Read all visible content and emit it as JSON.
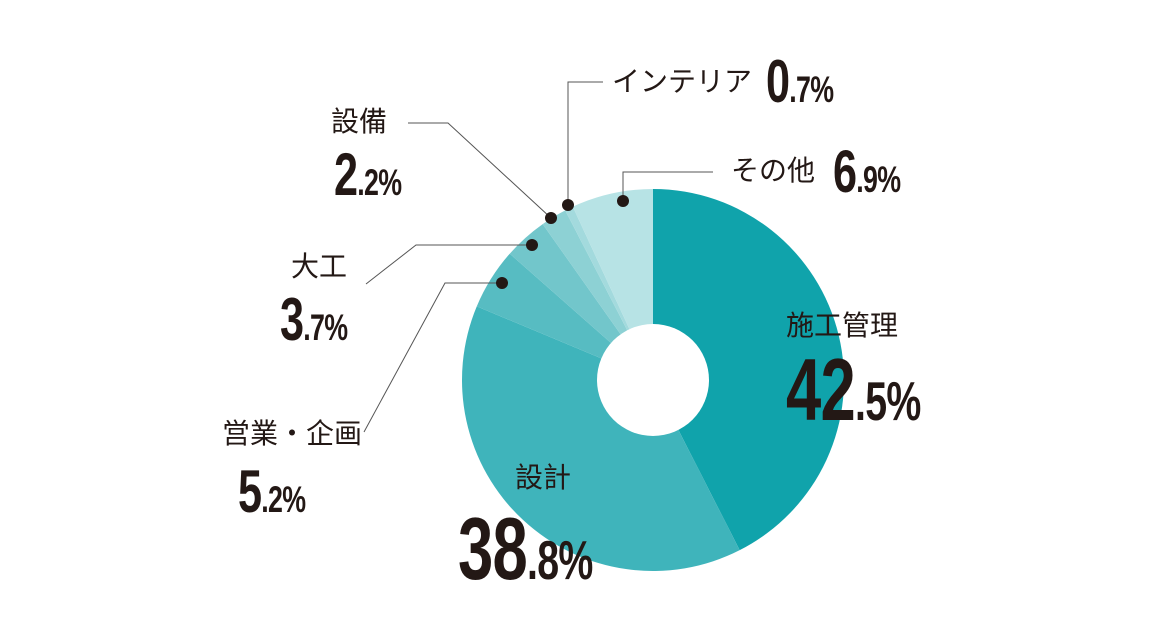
{
  "chart_data": {
    "type": "pie",
    "variant": "donut",
    "title": "",
    "start_angle": "12 o'clock, clockwise",
    "categories": [
      "施工管理",
      "設計",
      "営業・企画",
      "大工",
      "設備",
      "インテリア",
      "その他"
    ],
    "values": [
      42.5,
      38.8,
      5.2,
      3.7,
      2.2,
      0.7,
      6.9
    ],
    "unit": "%",
    "colors": [
      "#10a3ab",
      "#3fb4bb",
      "#57bcc2",
      "#72c6cb",
      "#8dd1d4",
      "#a3dadd",
      "#b7e3e5"
    ],
    "legend": "none (direct labels with leader lines)"
  },
  "labels": [
    {
      "name": "施工管理",
      "int": "42",
      "dec": ".5%"
    },
    {
      "name": "設計",
      "int": "38",
      "dec": ".8%"
    },
    {
      "name": "営業・企画",
      "int": "5",
      "dec": ".2%"
    },
    {
      "name": "大工",
      "int": "3",
      "dec": ".7%"
    },
    {
      "name": "設備",
      "int": "2",
      "dec": ".2%"
    },
    {
      "name": "インテリア",
      "int": "0",
      "dec": ".7%"
    },
    {
      "name": "その他",
      "int": "6",
      "dec": ".9%"
    }
  ]
}
